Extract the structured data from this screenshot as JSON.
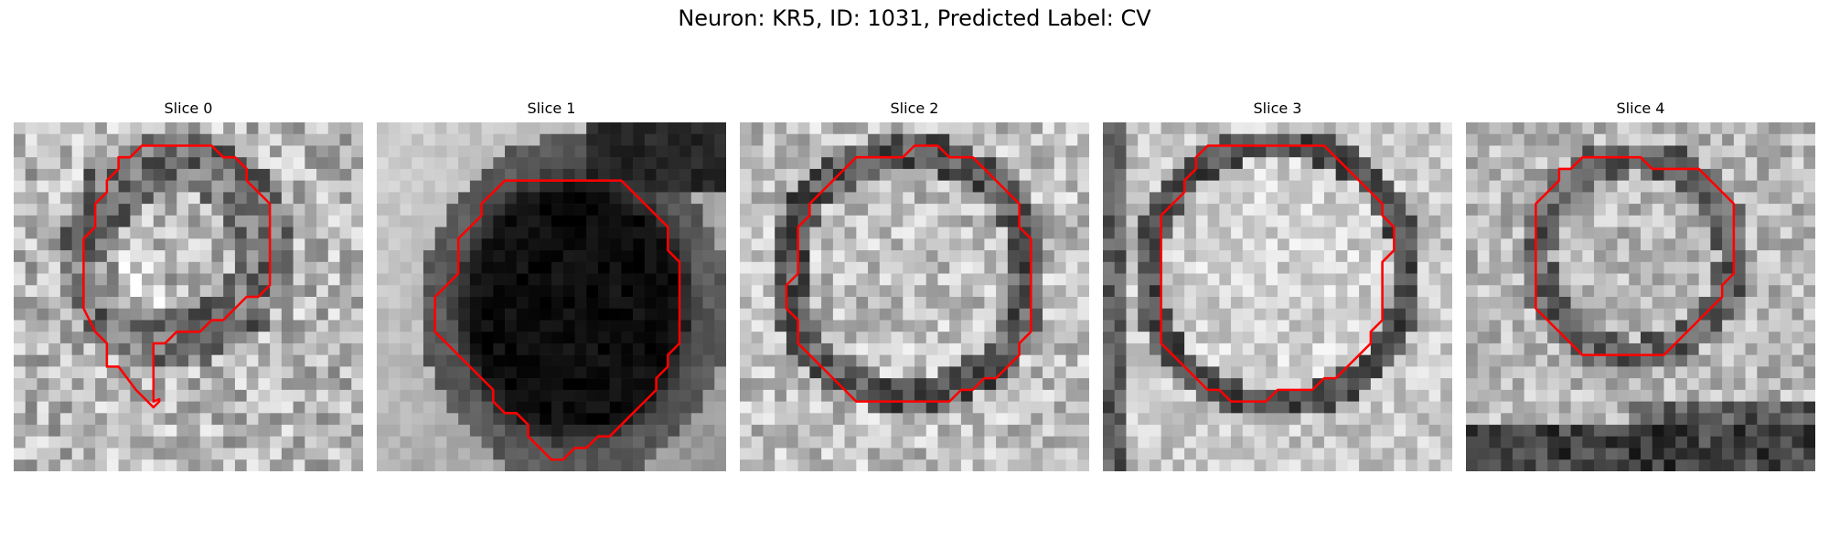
{
  "figure": {
    "title": "Neuron: KR5, ID: 1031, Predicted Label: CV"
  },
  "panels": [
    {
      "title": "Slice 0",
      "contour_color": "#ff0000"
    },
    {
      "title": "Slice 1",
      "contour_color": "#ff0000"
    },
    {
      "title": "Slice 2",
      "contour_color": "#ff0000"
    },
    {
      "title": "Slice 3",
      "contour_color": "#ff0000"
    },
    {
      "title": "Slice 4",
      "contour_color": "#ff0000"
    }
  ]
}
